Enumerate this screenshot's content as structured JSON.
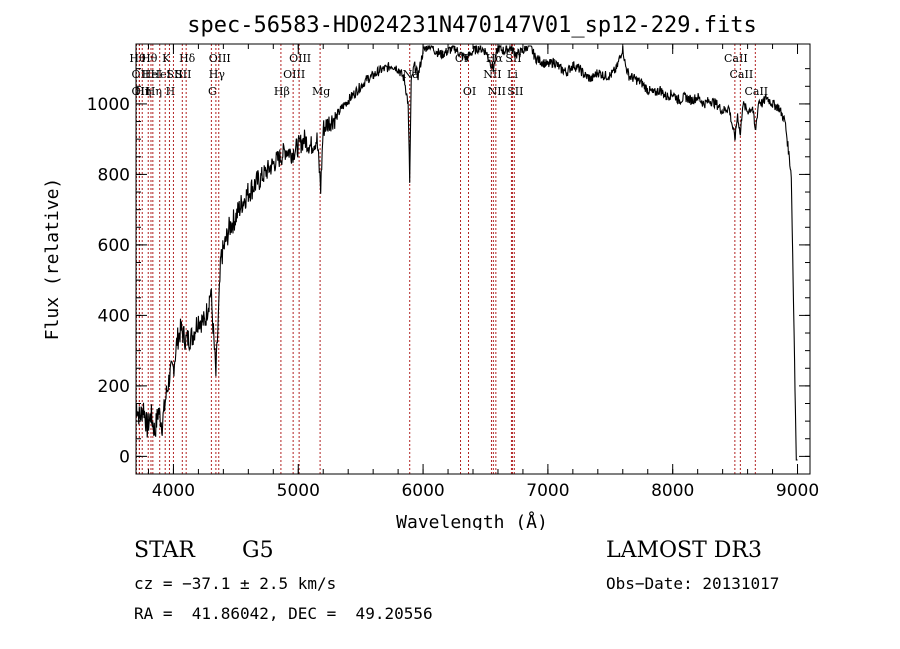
{
  "chart_data": {
    "type": "line",
    "title": "spec-56583-HD024231N470147V01_sp12-229.fits",
    "xlabel": "Wavelength (Å)",
    "ylabel": "Flux (relative)",
    "xlim": [
      3700,
      9100
    ],
    "ylim": [
      -50,
      1170
    ],
    "xticks": [
      4000,
      5000,
      6000,
      7000,
      8000,
      9000
    ],
    "xtick_labels": [
      "4000",
      "5000",
      "6000",
      "7000",
      "8000",
      "9000"
    ],
    "yticks": [
      0,
      200,
      400,
      600,
      800,
      1000
    ],
    "ytick_labels": [
      "0",
      "200",
      "400",
      "600",
      "800",
      "1000"
    ],
    "grid": false,
    "line_color": "#000000",
    "marker_color": "#b22222",
    "series": [
      {
        "name": "flux",
        "x": [
          3700,
          3730,
          3760,
          3790,
          3820,
          3850,
          3880,
          3910,
          3940,
          3970,
          4000,
          4030,
          4060,
          4100,
          4150,
          4200,
          4250,
          4300,
          4340,
          4380,
          4450,
          4500,
          4550,
          4600,
          4650,
          4700,
          4750,
          4800,
          4860,
          4900,
          4950,
          5000,
          5050,
          5100,
          5150,
          5180,
          5200,
          5250,
          5300,
          5350,
          5400,
          5450,
          5500,
          5550,
          5600,
          5650,
          5700,
          5750,
          5800,
          5850,
          5880,
          5893,
          5905,
          5930,
          5960,
          6000,
          6050,
          6100,
          6150,
          6200,
          6250,
          6300,
          6350,
          6400,
          6450,
          6500,
          6563,
          6600,
          6650,
          6700,
          6750,
          6800,
          6850,
          6900,
          6950,
          7000,
          7050,
          7100,
          7150,
          7200,
          7250,
          7300,
          7350,
          7400,
          7450,
          7500,
          7550,
          7600,
          7620,
          7650,
          7700,
          7750,
          7800,
          7850,
          7900,
          7950,
          8000,
          8050,
          8100,
          8150,
          8200,
          8250,
          8300,
          8350,
          8400,
          8450,
          8498,
          8520,
          8542,
          8560,
          8600,
          8640,
          8662,
          8690,
          8720,
          8750,
          8800,
          8850,
          8900,
          8950,
          8980,
          8990,
          9000
        ],
        "y": [
          150,
          110,
          140,
          80,
          120,
          70,
          130,
          90,
          170,
          230,
          250,
          330,
          360,
          330,
          340,
          390,
          380,
          470,
          230,
          560,
          650,
          680,
          720,
          750,
          770,
          790,
          810,
          830,
          850,
          870,
          860,
          880,
          900,
          880,
          900,
          760,
          930,
          950,
          960,
          990,
          1010,
          1030,
          1050,
          1070,
          1080,
          1095,
          1100,
          1110,
          1100,
          1070,
          1000,
          780,
          1060,
          1110,
          1080,
          1150,
          1170,
          1150,
          1140,
          1150,
          1160,
          1140,
          1130,
          1150,
          1160,
          1150,
          1100,
          1160,
          1150,
          1160,
          1140,
          1150,
          1170,
          1130,
          1120,
          1110,
          1120,
          1100,
          1090,
          1110,
          1100,
          1080,
          1070,
          1090,
          1080,
          1080,
          1100,
          1160,
          1110,
          1080,
          1070,
          1060,
          1040,
          1030,
          1040,
          1020,
          1030,
          1010,
          1020,
          1010,
          1020,
          1000,
          1010,
          1000,
          980,
          990,
          900,
          970,
          910,
          1000,
          980,
          990,
          920,
          1010,
          1000,
          1020,
          1000,
          990,
          950,
          800,
          200,
          -10,
          -10
        ]
      }
    ],
    "spectral_lines": [
      {
        "wl": 3704,
        "label": "Hθ",
        "row": 1
      },
      {
        "wl": 3727,
        "label": "OII",
        "row": 2
      },
      {
        "wl": 3727,
        "label": "OII",
        "row": 3
      },
      {
        "wl": 3750,
        "label": "Hη",
        "row": 3
      },
      {
        "wl": 3798,
        "label": "Hθ",
        "row": 1
      },
      {
        "wl": 3820,
        "label": "HeI",
        "row": 2
      },
      {
        "wl": 3835,
        "label": "Hη",
        "row": 3
      },
      {
        "wl": 3890,
        "label": "HeI",
        "row": 2
      },
      {
        "wl": 3934,
        "label": "K",
        "row": 1
      },
      {
        "wl": 3968,
        "label": "H",
        "row": 3
      },
      {
        "wl": 4000,
        "label": "SII",
        "row": 2
      },
      {
        "wl": 4102,
        "label": "Hδ",
        "row": 1
      },
      {
        "wl": 4071,
        "label": "SII",
        "row": 2
      },
      {
        "wl": 4304,
        "label": "G",
        "row": 3
      },
      {
        "wl": 4340,
        "label": "Hγ",
        "row": 2
      },
      {
        "wl": 4363,
        "label": "OIII",
        "row": 1
      },
      {
        "wl": 4861,
        "label": "Hβ",
        "row": 3
      },
      {
        "wl": 4959,
        "label": "OIII",
        "row": 2
      },
      {
        "wl": 5007,
        "label": "OIII",
        "row": 1
      },
      {
        "wl": 5175,
        "label": "Mg",
        "row": 3
      },
      {
        "wl": 5893,
        "label": "Na",
        "row": 2
      },
      {
        "wl": 6300,
        "label": "OI",
        "row": 1
      },
      {
        "wl": 6364,
        "label": "OI",
        "row": 3
      },
      {
        "wl": 6548,
        "label": "NII",
        "row": 2
      },
      {
        "wl": 6563,
        "label": "Hα",
        "row": 1
      },
      {
        "wl": 6583,
        "label": "NII",
        "row": 3
      },
      {
        "wl": 6708,
        "label": "Li",
        "row": 2
      },
      {
        "wl": 6716,
        "label": "SII",
        "row": 1
      },
      {
        "wl": 6731,
        "label": "SII",
        "row": 3
      },
      {
        "wl": 8498,
        "label": "CaII",
        "row": 1
      },
      {
        "wl": 8542,
        "label": "CaII",
        "row": 2
      },
      {
        "wl": 8662,
        "label": "CaII",
        "row": 3
      }
    ]
  },
  "info": {
    "object_class": "STAR",
    "subclass": "G5",
    "survey": "LAMOST DR3",
    "cz": "cz = −37.1 ± 2.5 km/s",
    "obs_date": "Obs−Date: 20131017",
    "coords": "RA =  41.86042, DEC =  49.20556"
  }
}
